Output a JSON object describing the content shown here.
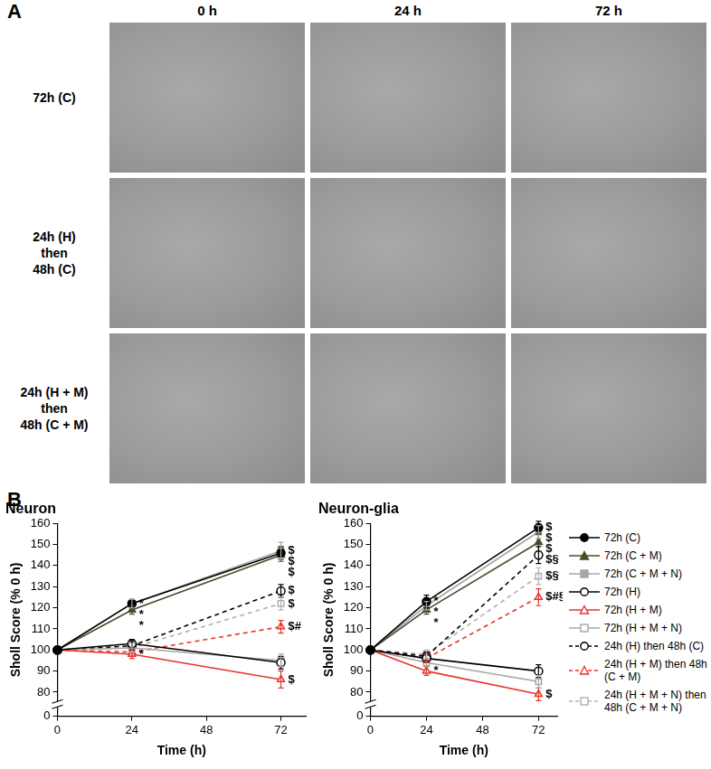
{
  "panel_a": {
    "label": "A",
    "columns": [
      "0 h",
      "24 h",
      "72 h"
    ],
    "rows": [
      [
        "72h (C)"
      ],
      [
        "24h (H)",
        "then",
        "48h (C)"
      ],
      [
        "24h (H + M)",
        "then",
        "48h (C + M)"
      ]
    ]
  },
  "panel_b": {
    "label": "B"
  },
  "chart_data": [
    {
      "type": "line",
      "title": "Neuron",
      "x_label": "Time (h)",
      "y_label": "Sholl Score (% 0 h)",
      "x": [
        0,
        24,
        72
      ],
      "xlim": [
        0,
        80
      ],
      "xticks": [
        0,
        24,
        48,
        72
      ],
      "ylim": [
        0,
        160
      ],
      "yticks": [
        0,
        80,
        90,
        100,
        110,
        120,
        130,
        140,
        150,
        160
      ],
      "grid": false,
      "series": [
        {
          "name": "72h (C)",
          "color": "#000000",
          "marker": "circle",
          "line_style": "solid",
          "values": [
            100,
            122,
            146
          ],
          "errors": [
            0,
            2,
            3
          ],
          "annotations": [
            null,
            "*",
            "$"
          ]
        },
        {
          "name": "72h (C + M)",
          "color": "#4b4a2b",
          "marker": "triangle",
          "line_style": "solid",
          "values": [
            100,
            119,
            145
          ],
          "errors": [
            0,
            2,
            3
          ],
          "annotations": [
            null,
            "*",
            "$"
          ]
        },
        {
          "name": "72h (C + M + N)",
          "color": "#a6a6a6",
          "marker": "square",
          "line_style": "solid",
          "values": [
            100,
            122,
            147
          ],
          "errors": [
            0,
            2,
            4
          ],
          "annotations": [
            null,
            "*",
            "$"
          ]
        },
        {
          "name": "72h (H)",
          "color": "#000000",
          "marker": "circle-open",
          "line_style": "solid",
          "values": [
            100,
            103,
            94
          ],
          "errors": [
            0,
            2,
            3
          ],
          "annotations": [
            null,
            null,
            null
          ]
        },
        {
          "name": "72h (H + M)",
          "color": "#e8332a",
          "marker": "triangle-open",
          "line_style": "solid",
          "values": [
            100,
            98,
            86
          ],
          "errors": [
            0,
            2,
            4
          ],
          "annotations": [
            null,
            "*",
            "$"
          ]
        },
        {
          "name": "72h (H + M + N)",
          "color": "#a6a6a6",
          "marker": "square-open",
          "line_style": "solid",
          "values": [
            100,
            101,
            95
          ],
          "errors": [
            0,
            2,
            3
          ],
          "annotations": [
            null,
            null,
            null
          ]
        },
        {
          "name": "24h (H) then 48h (C)",
          "color": "#000000",
          "marker": "circle-open",
          "line_style": "dashed",
          "values": [
            100,
            102,
            128
          ],
          "errors": [
            0,
            2,
            3
          ],
          "annotations": [
            null,
            null,
            "$"
          ]
        },
        {
          "name": "24h (H + M) then 48h (C + M)",
          "color": "#e8332a",
          "marker": "triangle-open",
          "line_style": "dashed",
          "values": [
            100,
            99,
            111
          ],
          "errors": [
            0,
            2,
            3
          ],
          "annotations": [
            null,
            null,
            "$#"
          ]
        },
        {
          "name": "24h (H + M + N) then 48h (C + M + N)",
          "color": "#b0b0b0",
          "marker": "square-open",
          "line_style": "dashed",
          "values": [
            100,
            101,
            122
          ],
          "errors": [
            0,
            2,
            3
          ],
          "annotations": [
            null,
            null,
            "$"
          ]
        }
      ]
    },
    {
      "type": "line",
      "title": "Neuron-glia",
      "x_label": "Time (h)",
      "y_label": "Sholl Score (% 0 h)",
      "x": [
        0,
        24,
        72
      ],
      "xlim": [
        0,
        80
      ],
      "xticks": [
        0,
        24,
        48,
        72
      ],
      "ylim": [
        0,
        160
      ],
      "yticks": [
        0,
        80,
        90,
        100,
        110,
        120,
        130,
        140,
        150,
        160
      ],
      "grid": false,
      "legend": "right",
      "series": [
        {
          "name": "72h (C)",
          "color": "#000000",
          "marker": "circle",
          "line_style": "solid",
          "values": [
            100,
            123,
            158
          ],
          "errors": [
            0,
            3,
            3
          ],
          "annotations": [
            null,
            "*",
            "$"
          ]
        },
        {
          "name": "72h (C + M)",
          "color": "#4b4a2b",
          "marker": "triangle",
          "line_style": "solid",
          "values": [
            100,
            119,
            151
          ],
          "errors": [
            0,
            2,
            4
          ],
          "annotations": [
            null,
            "*",
            "$"
          ]
        },
        {
          "name": "72h (C + M + N)",
          "color": "#a6a6a6",
          "marker": "square",
          "line_style": "solid",
          "values": [
            100,
            121,
            156
          ],
          "errors": [
            0,
            2,
            3
          ],
          "annotations": [
            null,
            "*",
            "$"
          ]
        },
        {
          "name": "72h (H)",
          "color": "#000000",
          "marker": "circle-open",
          "line_style": "solid",
          "values": [
            100,
            96,
            90
          ],
          "errors": [
            0,
            2,
            3
          ],
          "annotations": [
            null,
            null,
            null
          ]
        },
        {
          "name": "72h (H + M)",
          "color": "#e8332a",
          "marker": "triangle-open",
          "line_style": "solid",
          "values": [
            100,
            90,
            79
          ],
          "errors": [
            0,
            2,
            3
          ],
          "annotations": [
            null,
            "*",
            "$"
          ]
        },
        {
          "name": "72h (H + M + N)",
          "color": "#a6a6a6",
          "marker": "square-open",
          "line_style": "solid",
          "values": [
            100,
            94,
            85
          ],
          "errors": [
            0,
            2,
            3
          ],
          "annotations": [
            null,
            null,
            null
          ]
        },
        {
          "name": "24h (H) then 48h (C)",
          "color": "#000000",
          "marker": "circle-open",
          "line_style": "dashed",
          "values": [
            100,
            97,
            145
          ],
          "errors": [
            0,
            2,
            4
          ],
          "annotations": [
            null,
            null,
            "$§"
          ]
        },
        {
          "name": "24h (H + M) then 48h (C + M)",
          "color": "#e8332a",
          "marker": "triangle-open",
          "line_style": "dashed",
          "values": [
            100,
            96,
            125
          ],
          "errors": [
            0,
            2,
            4
          ],
          "annotations": [
            null,
            null,
            "$#§"
          ]
        },
        {
          "name": "24h (H + M + N) then 48h (C + M + N)",
          "color": "#b0b0b0",
          "marker": "square-open",
          "line_style": "dashed",
          "values": [
            100,
            98,
            135
          ],
          "errors": [
            0,
            2,
            4
          ],
          "annotations": [
            null,
            null,
            "$§"
          ]
        }
      ]
    }
  ]
}
